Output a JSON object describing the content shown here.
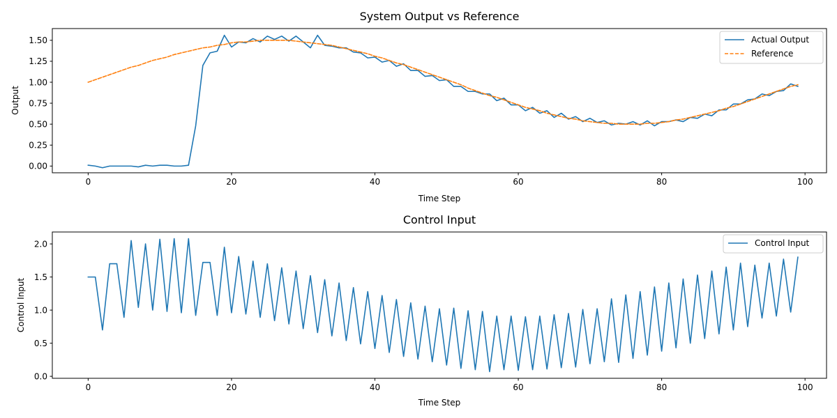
{
  "chart_data": [
    {
      "type": "line",
      "title": "System Output vs Reference",
      "xlabel": "Time Step",
      "ylabel": "Output",
      "xlim": [
        -5,
        103
      ],
      "ylim": [
        -0.08,
        1.64
      ],
      "xticks": [
        0,
        20,
        40,
        60,
        80,
        100
      ],
      "xtick_labels": [
        "0",
        "20",
        "40",
        "60",
        "80",
        "100"
      ],
      "yticks": [
        0,
        0.25,
        0.5,
        0.75,
        1.0,
        1.25,
        1.5
      ],
      "ytick_labels": [
        "0.00",
        "0.25",
        "0.50",
        "0.75",
        "1.00",
        "1.25",
        "1.50"
      ],
      "grid": false,
      "legend_position": "upper-right",
      "series": [
        {
          "name": "Actual Output",
          "color": "#1f77b4",
          "style": "solid",
          "x": [
            0,
            1,
            2,
            3,
            4,
            5,
            6,
            7,
            8,
            9,
            10,
            11,
            12,
            13,
            14,
            15,
            16,
            17,
            18,
            19,
            20,
            21,
            22,
            23,
            24,
            25,
            26,
            27,
            28,
            29,
            30,
            31,
            32,
            33,
            34,
            35,
            36,
            37,
            38,
            39,
            40,
            41,
            42,
            43,
            44,
            45,
            46,
            47,
            48,
            49,
            50,
            51,
            52,
            53,
            54,
            55,
            56,
            57,
            58,
            59,
            60,
            61,
            62,
            63,
            64,
            65,
            66,
            67,
            68,
            69,
            70,
            71,
            72,
            73,
            74,
            75,
            76,
            77,
            78,
            79,
            80,
            81,
            82,
            83,
            84,
            85,
            86,
            87,
            88,
            89,
            90,
            91,
            92,
            93,
            94,
            95,
            96,
            97,
            98,
            99
          ],
          "values": [
            0.01,
            0.0,
            -0.02,
            0.0,
            0.0,
            0.0,
            0.0,
            -0.01,
            0.01,
            0.0,
            0.01,
            0.01,
            0.0,
            0.0,
            0.01,
            0.48,
            1.2,
            1.35,
            1.37,
            1.56,
            1.42,
            1.48,
            1.47,
            1.52,
            1.48,
            1.55,
            1.51,
            1.55,
            1.49,
            1.55,
            1.48,
            1.41,
            1.56,
            1.44,
            1.43,
            1.41,
            1.41,
            1.36,
            1.35,
            1.29,
            1.3,
            1.24,
            1.26,
            1.19,
            1.22,
            1.14,
            1.14,
            1.07,
            1.08,
            1.02,
            1.03,
            0.95,
            0.95,
            0.89,
            0.89,
            0.86,
            0.86,
            0.78,
            0.81,
            0.73,
            0.73,
            0.66,
            0.7,
            0.63,
            0.66,
            0.58,
            0.63,
            0.56,
            0.59,
            0.53,
            0.57,
            0.52,
            0.54,
            0.49,
            0.51,
            0.5,
            0.53,
            0.49,
            0.54,
            0.48,
            0.53,
            0.53,
            0.55,
            0.53,
            0.58,
            0.57,
            0.62,
            0.6,
            0.67,
            0.67,
            0.74,
            0.74,
            0.79,
            0.8,
            0.86,
            0.84,
            0.89,
            0.9,
            0.98,
            0.95
          ]
        },
        {
          "name": "Reference",
          "color": "#ff7f0e",
          "style": "dashed",
          "x": [
            0,
            1,
            2,
            3,
            4,
            5,
            6,
            7,
            8,
            9,
            10,
            11,
            12,
            13,
            14,
            15,
            16,
            17,
            18,
            19,
            20,
            21,
            22,
            23,
            24,
            25,
            26,
            27,
            28,
            29,
            30,
            31,
            32,
            33,
            34,
            35,
            36,
            37,
            38,
            39,
            40,
            41,
            42,
            43,
            44,
            45,
            46,
            47,
            48,
            49,
            50,
            51,
            52,
            53,
            54,
            55,
            56,
            57,
            58,
            59,
            60,
            61,
            62,
            63,
            64,
            65,
            66,
            67,
            68,
            69,
            70,
            71,
            72,
            73,
            74,
            75,
            76,
            77,
            78,
            79,
            80,
            81,
            82,
            83,
            84,
            85,
            86,
            87,
            88,
            89,
            90,
            91,
            92,
            93,
            94,
            95,
            96,
            97,
            98,
            99
          ],
          "values": [
            1.0,
            1.03,
            1.06,
            1.09,
            1.12,
            1.15,
            1.18,
            1.2,
            1.23,
            1.26,
            1.28,
            1.3,
            1.33,
            1.35,
            1.37,
            1.39,
            1.41,
            1.42,
            1.44,
            1.45,
            1.47,
            1.48,
            1.48,
            1.49,
            1.5,
            1.5,
            1.5,
            1.5,
            1.5,
            1.49,
            1.48,
            1.47,
            1.46,
            1.45,
            1.44,
            1.42,
            1.4,
            1.38,
            1.36,
            1.34,
            1.31,
            1.29,
            1.26,
            1.23,
            1.21,
            1.18,
            1.15,
            1.12,
            1.09,
            1.06,
            1.03,
            1.0,
            0.97,
            0.93,
            0.9,
            0.87,
            0.84,
            0.82,
            0.79,
            0.76,
            0.73,
            0.7,
            0.68,
            0.66,
            0.63,
            0.61,
            0.59,
            0.57,
            0.56,
            0.54,
            0.53,
            0.52,
            0.51,
            0.51,
            0.5,
            0.5,
            0.5,
            0.5,
            0.51,
            0.51,
            0.52,
            0.53,
            0.55,
            0.56,
            0.58,
            0.6,
            0.62,
            0.64,
            0.66,
            0.69,
            0.71,
            0.74,
            0.77,
            0.8,
            0.83,
            0.86,
            0.89,
            0.92,
            0.95,
            0.97
          ]
        }
      ]
    },
    {
      "type": "line",
      "title": "Control Input",
      "xlabel": "Time Step",
      "ylabel": "Control Input",
      "xlim": [
        -5,
        103
      ],
      "ylim": [
        -0.03,
        2.18
      ],
      "xticks": [
        0,
        20,
        40,
        60,
        80,
        100
      ],
      "xtick_labels": [
        "0",
        "20",
        "40",
        "60",
        "80",
        "100"
      ],
      "yticks": [
        0,
        0.5,
        1.0,
        1.5,
        2.0
      ],
      "ytick_labels": [
        "0.0",
        "0.5",
        "1.0",
        "1.5",
        "2.0"
      ],
      "grid": false,
      "legend_position": "upper-right",
      "series": [
        {
          "name": "Control Input",
          "color": "#1f77b4",
          "style": "solid",
          "x": [
            0,
            1,
            2,
            3,
            4,
            5,
            6,
            7,
            8,
            9,
            10,
            11,
            12,
            13,
            14,
            15,
            16,
            17,
            18,
            19,
            20,
            21,
            22,
            23,
            24,
            25,
            26,
            27,
            28,
            29,
            30,
            31,
            32,
            33,
            34,
            35,
            36,
            37,
            38,
            39,
            40,
            41,
            42,
            43,
            44,
            45,
            46,
            47,
            48,
            49,
            50,
            51,
            52,
            53,
            54,
            55,
            56,
            57,
            58,
            59,
            60,
            61,
            62,
            63,
            64,
            65,
            66,
            67,
            68,
            69,
            70,
            71,
            72,
            73,
            74,
            75,
            76,
            77,
            78,
            79,
            80,
            81,
            82,
            83,
            84,
            85,
            86,
            87,
            88,
            89,
            90,
            91,
            92,
            93,
            94,
            95,
            96,
            97,
            98,
            99
          ],
          "values": [
            1.5,
            1.5,
            0.7,
            1.7,
            1.7,
            0.89,
            2.05,
            1.04,
            2.0,
            1.0,
            2.07,
            0.98,
            2.08,
            0.96,
            2.08,
            0.92,
            1.72,
            1.72,
            0.92,
            1.95,
            0.96,
            1.81,
            0.94,
            1.74,
            0.89,
            1.7,
            0.84,
            1.64,
            0.79,
            1.59,
            0.72,
            1.52,
            0.66,
            1.46,
            0.61,
            1.41,
            0.54,
            1.34,
            0.49,
            1.28,
            0.42,
            1.22,
            0.36,
            1.16,
            0.3,
            1.11,
            0.26,
            1.06,
            0.22,
            1.02,
            0.17,
            1.03,
            0.12,
            0.99,
            0.1,
            0.98,
            0.07,
            0.91,
            0.1,
            0.91,
            0.09,
            0.9,
            0.1,
            0.91,
            0.11,
            0.93,
            0.13,
            0.95,
            0.14,
            1.01,
            0.19,
            1.02,
            0.22,
            1.17,
            0.21,
            1.23,
            0.27,
            1.28,
            0.32,
            1.35,
            0.38,
            1.41,
            0.43,
            1.47,
            0.5,
            1.53,
            0.57,
            1.59,
            0.64,
            1.65,
            0.7,
            1.71,
            0.75,
            1.68,
            0.88,
            1.71,
            0.91,
            1.77,
            0.97,
            1.8
          ]
        }
      ]
    }
  ]
}
